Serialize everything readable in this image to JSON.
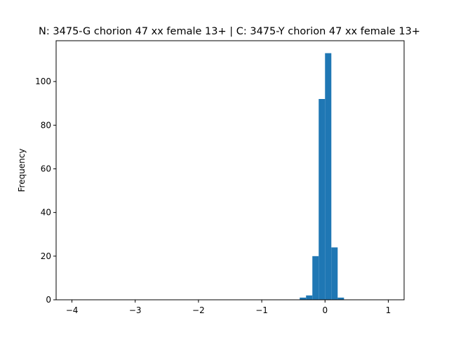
{
  "chart_data": {
    "type": "histogram",
    "title": "N: 3475-G chorion 47 xx female 13+ | C: 3475-Y chorion 47 xx female 13+",
    "xlabel": "",
    "ylabel": "Frequency",
    "xlim": [
      -4.25,
      1.25
    ],
    "ylim": [
      0,
      118.7
    ],
    "xticks": [
      -4,
      -3,
      -2,
      -1,
      0,
      1
    ],
    "xtick_labels": [
      "−4",
      "−3",
      "−2",
      "−1",
      "0",
      "1"
    ],
    "yticks": [
      0,
      20,
      40,
      60,
      80,
      100
    ],
    "ytick_labels": [
      "0",
      "20",
      "40",
      "60",
      "80",
      "100"
    ],
    "grid": false,
    "bar_color": "#1f77b4",
    "bins": [
      {
        "x0": -0.4,
        "x1": -0.3,
        "count": 1
      },
      {
        "x0": -0.3,
        "x1": -0.2,
        "count": 2
      },
      {
        "x0": -0.2,
        "x1": -0.1,
        "count": 20
      },
      {
        "x0": -0.1,
        "x1": 0.0,
        "count": 92
      },
      {
        "x0": 0.0,
        "x1": 0.1,
        "count": 113
      },
      {
        "x0": 0.1,
        "x1": 0.2,
        "count": 24
      },
      {
        "x0": 0.2,
        "x1": 0.3,
        "count": 1
      }
    ]
  }
}
